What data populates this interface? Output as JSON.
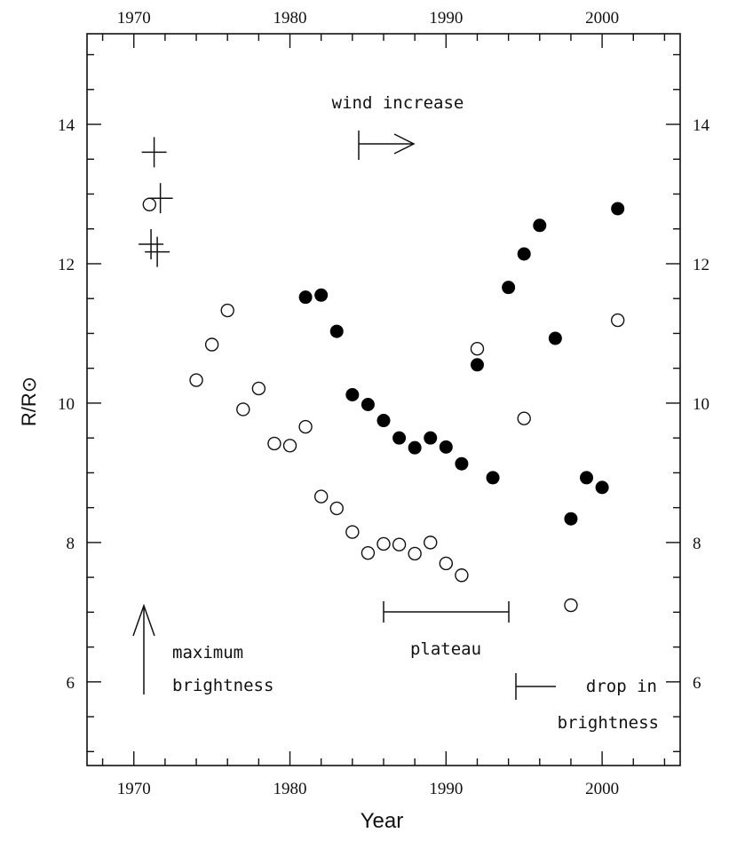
{
  "chart_data": {
    "type": "scatter",
    "xlabel": "Year",
    "ylabel": "R/R⊙",
    "xlim": [
      1967,
      2005
    ],
    "ylim": [
      4.8,
      15.3
    ],
    "x_ticks": [
      1970,
      1980,
      1990,
      2000
    ],
    "x_tick_labels": [
      "1970",
      "1980",
      "1990",
      "2000"
    ],
    "y_ticks": [
      6,
      8,
      10,
      12,
      14
    ],
    "y_tick_labels": [
      "6",
      "8",
      "10",
      "12",
      "14"
    ],
    "grid": false,
    "series": [
      {
        "marker": "filled-circle",
        "x": [
          1981,
          1982,
          1983,
          1984,
          1985,
          1986,
          1987,
          1988,
          1989,
          1990,
          1991,
          1992,
          1993,
          1994,
          1995,
          1996,
          1997,
          1998,
          1999,
          2000,
          2001
        ],
        "y": [
          11.52,
          11.55,
          11.03,
          10.12,
          9.98,
          9.75,
          9.5,
          9.36,
          9.5,
          9.37,
          9.13,
          10.55,
          8.93,
          11.66,
          12.14,
          12.55,
          10.93,
          8.34,
          8.93,
          8.79,
          12.79
        ]
      },
      {
        "marker": "open-circle",
        "x": [
          1971,
          1974,
          1975,
          1976,
          1977,
          1978,
          1979,
          1980,
          1981,
          1982,
          1983,
          1984,
          1985,
          1986,
          1987,
          1988,
          1989,
          1990,
          1991,
          1992,
          1995,
          1998,
          2001
        ],
        "y": [
          12.85,
          10.33,
          10.84,
          11.33,
          9.91,
          10.21,
          9.42,
          9.39,
          9.66,
          8.66,
          8.49,
          8.15,
          7.85,
          7.98,
          7.97,
          7.84,
          8.0,
          7.7,
          7.53,
          10.78,
          9.78,
          7.1,
          11.19
        ]
      },
      {
        "marker": "plus",
        "x": [
          1971.3,
          1971.7,
          1971.1,
          1971.5
        ],
        "y": [
          13.6,
          12.94,
          12.28,
          12.17
        ]
      }
    ],
    "annotations": {
      "wind": "wind increase",
      "plateau": "plateau",
      "maximum": [
        "maximum",
        "brightness"
      ],
      "drop": [
        "drop in",
        "brightness"
      ]
    }
  }
}
